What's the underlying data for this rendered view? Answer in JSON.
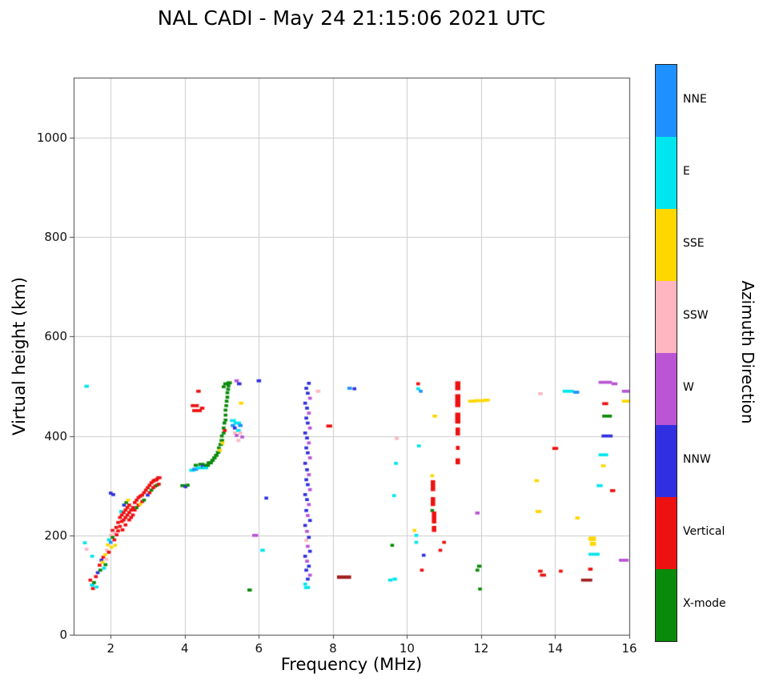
{
  "title": "NAL CADI - May 24 21:15:06 2021 UTC",
  "chart_data": {
    "type": "scatter",
    "title": "NAL CADI - May 24 21:15:06 2021 UTC",
    "xlabel": "Frequency (MHz)",
    "ylabel": "Virtual height (km)",
    "xlim": [
      1,
      16
    ],
    "ylim": [
      0,
      1121
    ],
    "xticks": [
      2,
      4,
      6,
      8,
      10,
      12,
      14,
      16
    ],
    "yticks": [
      0,
      200,
      400,
      600,
      800,
      1000
    ],
    "grid": true,
    "grid_color": "#cccccc",
    "axis_color": "#444444",
    "background": "#ffffff",
    "legend_title": "Azimuth Direction",
    "legend": [
      "NNE",
      "E",
      "SSE",
      "SSW",
      "W",
      "NNW",
      "Vertical",
      "X-mode"
    ],
    "colors": {
      "NNE": "#1E90FF",
      "E": "#00E5EE",
      "SSE": "#FFD700",
      "SSW": "#FFB6C1",
      "W": "#BA55D3",
      "NNW": "#3030E0",
      "Vertical": "#EE1111",
      "X-mode": "#0A8A0A",
      "DarkRed": "#A02020"
    },
    "point_format": "[freq_MHz, virtual_height_km, azimuth, width_MHz(optional, default 0.1), height_km(optional, default 6)]",
    "points": [
      [
        1.35,
        500,
        "E",
        0.12
      ],
      [
        1.3,
        185,
        "E"
      ],
      [
        1.35,
        172,
        "SSW"
      ],
      [
        1.5,
        158,
        "E"
      ],
      [
        1.45,
        110,
        "Vertical"
      ],
      [
        1.5,
        100,
        "E",
        0.12
      ],
      [
        1.52,
        93,
        "Vertical"
      ],
      [
        1.55,
        105,
        "X-mode"
      ],
      [
        1.6,
        117,
        "Vertical"
      ],
      [
        1.62,
        96,
        "E"
      ],
      [
        1.65,
        125,
        "NNW"
      ],
      [
        1.7,
        140,
        "Vertical"
      ],
      [
        1.72,
        130,
        "X-mode"
      ],
      [
        1.75,
        150,
        "NNW"
      ],
      [
        1.78,
        146,
        "SSE"
      ],
      [
        1.8,
        156,
        "Vertical"
      ],
      [
        1.82,
        134,
        "E"
      ],
      [
        1.85,
        161,
        "SSE"
      ],
      [
        1.86,
        141,
        "X-mode"
      ],
      [
        1.88,
        152,
        "SSW"
      ],
      [
        1.9,
        170,
        "SSW"
      ],
      [
        1.92,
        181,
        "SSE"
      ],
      [
        1.95,
        191,
        "E"
      ],
      [
        1.95,
        166,
        "Vertical"
      ],
      [
        2.0,
        200,
        "SSW"
      ],
      [
        2.0,
        186,
        "NNE"
      ],
      [
        2.02,
        176,
        "SSE"
      ],
      [
        2.05,
        210,
        "Vertical"
      ],
      [
        2.05,
        196,
        "X-mode"
      ],
      [
        2.1,
        205,
        "SSW"
      ],
      [
        2.1,
        191,
        "Vertical"
      ],
      [
        2.12,
        180,
        "SSE"
      ],
      [
        2.0,
        285,
        "NNW"
      ],
      [
        2.07,
        282,
        "NNW"
      ],
      [
        2.15,
        216,
        "Vertical"
      ],
      [
        2.16,
        201,
        "Vertical"
      ],
      [
        2.2,
        226,
        "Vertical"
      ],
      [
        2.2,
        209,
        "Vertical"
      ],
      [
        2.25,
        236,
        "Vertical"
      ],
      [
        2.25,
        218,
        "Vertical"
      ],
      [
        2.28,
        248,
        "E"
      ],
      [
        2.3,
        241,
        "Vertical"
      ],
      [
        2.3,
        228,
        "Vertical"
      ],
      [
        2.32,
        211,
        "Vertical"
      ],
      [
        2.35,
        246,
        "Vertical"
      ],
      [
        2.35,
        231,
        "Vertical"
      ],
      [
        2.36,
        261,
        "NNW"
      ],
      [
        2.4,
        251,
        "Vertical"
      ],
      [
        2.4,
        236,
        "Vertical"
      ],
      [
        2.4,
        221,
        "Vertical"
      ],
      [
        2.42,
        266,
        "X-mode"
      ],
      [
        2.45,
        256,
        "Vertical"
      ],
      [
        2.45,
        241,
        "Vertical"
      ],
      [
        2.47,
        271,
        "SSE"
      ],
      [
        2.5,
        261,
        "Vertical"
      ],
      [
        2.5,
        246,
        "Vertical"
      ],
      [
        2.5,
        231,
        "Vertical"
      ],
      [
        2.55,
        251,
        "Vertical"
      ],
      [
        2.55,
        236,
        "Vertical"
      ],
      [
        2.6,
        256,
        "Vertical"
      ],
      [
        2.6,
        241,
        "Vertical"
      ],
      [
        2.65,
        266,
        "Vertical"
      ],
      [
        2.65,
        251,
        "Vertical"
      ],
      [
        2.7,
        271,
        "Vertical"
      ],
      [
        2.7,
        256,
        "X-mode"
      ],
      [
        2.75,
        276,
        "Vertical"
      ],
      [
        2.75,
        261,
        "Vertical"
      ],
      [
        2.8,
        279,
        "Vertical"
      ],
      [
        2.8,
        263,
        "SSE"
      ],
      [
        2.85,
        281,
        "Vertical"
      ],
      [
        2.85,
        268,
        "Vertical"
      ],
      [
        2.9,
        286,
        "Vertical"
      ],
      [
        2.9,
        271,
        "X-mode"
      ],
      [
        2.95,
        291,
        "Vertical"
      ],
      [
        3.0,
        296,
        "Vertical"
      ],
      [
        3.0,
        281,
        "NNW"
      ],
      [
        3.05,
        301,
        "Vertical"
      ],
      [
        3.05,
        286,
        "Vertical"
      ],
      [
        3.1,
        306,
        "Vertical"
      ],
      [
        3.1,
        291,
        "X-mode"
      ],
      [
        3.15,
        309,
        "Vertical"
      ],
      [
        3.15,
        296,
        "Vertical"
      ],
      [
        3.2,
        311,
        "Vertical",
        0.14
      ],
      [
        3.2,
        299,
        "Vertical"
      ],
      [
        3.25,
        313,
        "Vertical"
      ],
      [
        3.25,
        301,
        "X-mode"
      ],
      [
        3.3,
        316,
        "Vertical",
        0.14
      ],
      [
        3.3,
        303,
        "Vertical"
      ],
      [
        3.95,
        300,
        "X-mode",
        0.14
      ],
      [
        4.02,
        298,
        "NNW"
      ],
      [
        4.08,
        301,
        "X-mode"
      ],
      [
        4.2,
        331,
        "E",
        0.16
      ],
      [
        4.28,
        333,
        "NNE",
        0.16
      ],
      [
        4.3,
        341,
        "X-mode",
        0.12
      ],
      [
        4.4,
        336,
        "E",
        0.2
      ],
      [
        4.45,
        343,
        "X-mode",
        0.16
      ],
      [
        4.5,
        339,
        "NNW",
        0.12
      ],
      [
        4.55,
        336,
        "E",
        0.16
      ],
      [
        4.6,
        341,
        "X-mode",
        0.16
      ],
      [
        4.65,
        346,
        "X-mode",
        0.12
      ],
      [
        4.27,
        461,
        "Vertical",
        0.22
      ],
      [
        4.33,
        451,
        "Vertical",
        0.26
      ],
      [
        4.47,
        456,
        "Vertical",
        0.12
      ],
      [
        4.37,
        490,
        "Vertical",
        0.12
      ],
      [
        4.7,
        346,
        "X-mode",
        0.12
      ],
      [
        4.75,
        351,
        "X-mode",
        0.12
      ],
      [
        4.8,
        356,
        "X-mode",
        0.12
      ],
      [
        4.85,
        361,
        "X-mode",
        0.12
      ],
      [
        4.9,
        367,
        "X-mode",
        0.12
      ],
      [
        4.92,
        376,
        "X-mode"
      ],
      [
        4.95,
        371,
        "SSE"
      ],
      [
        4.97,
        383,
        "X-mode",
        0.12
      ],
      [
        5.0,
        391,
        "X-mode",
        0.12
      ],
      [
        5.0,
        400,
        "X-mode"
      ],
      [
        5.02,
        386,
        "SSE"
      ],
      [
        5.05,
        406,
        "X-mode"
      ],
      [
        5.05,
        416,
        "X-mode"
      ],
      [
        5.07,
        426,
        "X-mode"
      ],
      [
        5.08,
        411,
        "Vertical"
      ],
      [
        5.1,
        432,
        "X-mode"
      ],
      [
        5.1,
        442,
        "X-mode"
      ],
      [
        5.1,
        452,
        "X-mode"
      ],
      [
        5.12,
        461,
        "X-mode"
      ],
      [
        5.13,
        470,
        "X-mode"
      ],
      [
        5.15,
        478,
        "X-mode"
      ],
      [
        5.15,
        487,
        "X-mode"
      ],
      [
        5.17,
        494,
        "X-mode"
      ],
      [
        5.18,
        501,
        "X-mode"
      ],
      [
        5.2,
        507,
        "X-mode",
        0.14
      ],
      [
        5.1,
        505,
        "X-mode",
        0.12
      ],
      [
        5.05,
        499,
        "X-mode"
      ],
      [
        5.3,
        431,
        "E",
        0.16
      ],
      [
        5.3,
        421,
        "NNE",
        0.12
      ],
      [
        5.35,
        416,
        "NNW"
      ],
      [
        5.35,
        406,
        "SSW"
      ],
      [
        5.4,
        401,
        "W"
      ],
      [
        5.42,
        426,
        "E",
        0.2
      ],
      [
        5.45,
        411,
        "E",
        0.12
      ],
      [
        5.5,
        421,
        "NNE",
        0.12
      ],
      [
        5.5,
        406,
        "SSW"
      ],
      [
        5.55,
        398,
        "W"
      ],
      [
        5.45,
        391,
        "SSW"
      ],
      [
        5.4,
        511,
        "W",
        0.12
      ],
      [
        5.47,
        505,
        "NNW",
        0.12
      ],
      [
        5.52,
        466,
        "SSE",
        0.12
      ],
      [
        5.75,
        90,
        "X-mode",
        0.12
      ],
      [
        5.9,
        200,
        "W",
        0.16
      ],
      [
        6.0,
        511,
        "NNW",
        0.12
      ],
      [
        6.1,
        170,
        "E",
        0.12
      ],
      [
        6.2,
        275,
        "NNW"
      ],
      [
        7.3,
        95,
        "E",
        0.16
      ],
      [
        7.25,
        102,
        "E"
      ],
      [
        7.32,
        112,
        "NNW"
      ],
      [
        7.38,
        120,
        "W"
      ],
      [
        7.28,
        130,
        "NNW"
      ],
      [
        7.35,
        138,
        "NNW"
      ],
      [
        7.3,
        148,
        "W"
      ],
      [
        7.25,
        158,
        "NNW"
      ],
      [
        7.38,
        168,
        "NNW"
      ],
      [
        7.32,
        178,
        "W"
      ],
      [
        7.28,
        190,
        "SSW"
      ],
      [
        7.35,
        196,
        "NNW"
      ],
      [
        7.3,
        208,
        "W"
      ],
      [
        7.25,
        220,
        "NNW"
      ],
      [
        7.38,
        230,
        "NNW"
      ],
      [
        7.32,
        240,
        "W"
      ],
      [
        7.28,
        250,
        "NNW"
      ],
      [
        7.35,
        262,
        "W"
      ],
      [
        7.3,
        272,
        "NNW"
      ],
      [
        7.25,
        282,
        "NNW"
      ],
      [
        7.38,
        292,
        "W"
      ],
      [
        7.32,
        302,
        "NNW"
      ],
      [
        7.28,
        312,
        "NNW"
      ],
      [
        7.35,
        322,
        "W"
      ],
      [
        7.3,
        332,
        "NNW"
      ],
      [
        7.25,
        345,
        "NNW"
      ],
      [
        7.38,
        356,
        "W"
      ],
      [
        7.32,
        366,
        "NNW"
      ],
      [
        7.28,
        376,
        "NNW"
      ],
      [
        7.35,
        386,
        "W"
      ],
      [
        7.3,
        396,
        "NNW"
      ],
      [
        7.25,
        406,
        "NNW"
      ],
      [
        7.38,
        416,
        "W"
      ],
      [
        7.32,
        426,
        "NNW"
      ],
      [
        7.28,
        436,
        "NNW"
      ],
      [
        7.35,
        446,
        "W"
      ],
      [
        7.3,
        456,
        "NNW"
      ],
      [
        7.25,
        466,
        "NNW"
      ],
      [
        7.38,
        476,
        "W"
      ],
      [
        7.32,
        486,
        "NNW"
      ],
      [
        7.28,
        496,
        "NNW"
      ],
      [
        7.35,
        506,
        "NNW"
      ],
      [
        7.6,
        490,
        "SSW",
        0.12
      ],
      [
        7.9,
        420,
        "Vertical",
        0.16
      ],
      [
        8.3,
        116,
        "DarkRed",
        0.38,
        7
      ],
      [
        8.45,
        496,
        "NNE",
        0.12
      ],
      [
        8.58,
        495,
        "NNW"
      ],
      [
        9.55,
        110,
        "E",
        0.12
      ],
      [
        9.67,
        112,
        "E",
        0.12
      ],
      [
        9.6,
        180,
        "X-mode"
      ],
      [
        9.65,
        280,
        "E"
      ],
      [
        9.7,
        345,
        "E"
      ],
      [
        9.72,
        395,
        "SSW"
      ],
      [
        10.2,
        210,
        "SSE"
      ],
      [
        10.25,
        200,
        "E"
      ],
      [
        10.25,
        186,
        "E"
      ],
      [
        10.3,
        505,
        "Vertical"
      ],
      [
        10.3,
        495,
        "E"
      ],
      [
        10.37,
        490,
        "NNE"
      ],
      [
        10.32,
        380,
        "E"
      ],
      [
        10.45,
        160,
        "NNW"
      ],
      [
        10.4,
        130,
        "Vertical"
      ],
      [
        10.68,
        320,
        "SSE"
      ],
      [
        10.7,
        300,
        "Vertical",
        0.12,
        22
      ],
      [
        10.7,
        268,
        "Vertical",
        0.12,
        18
      ],
      [
        10.68,
        250,
        "X-mode"
      ],
      [
        10.73,
        236,
        "Vertical",
        0.12,
        24
      ],
      [
        10.73,
        213,
        "Vertical",
        0.12,
        12
      ],
      [
        10.75,
        440,
        "SSE",
        0.12
      ],
      [
        10.9,
        170,
        "Vertical"
      ],
      [
        11.0,
        186,
        "Vertical"
      ],
      [
        11.37,
        501,
        "Vertical",
        0.14,
        18
      ],
      [
        11.37,
        471,
        "Vertical",
        0.14,
        26
      ],
      [
        11.37,
        436,
        "Vertical",
        0.14,
        22
      ],
      [
        11.37,
        409,
        "Vertical",
        0.12,
        16
      ],
      [
        11.37,
        376,
        "Vertical",
        0.1,
        8
      ],
      [
        11.37,
        349,
        "Vertical",
        0.12,
        12
      ],
      [
        11.75,
        470,
        "SSE",
        0.2
      ],
      [
        11.95,
        471,
        "SSE",
        0.3
      ],
      [
        12.15,
        472,
        "SSE",
        0.16
      ],
      [
        11.9,
        245,
        "W",
        0.12
      ],
      [
        11.95,
        138,
        "X-mode",
        0.12
      ],
      [
        11.9,
        130,
        "X-mode"
      ],
      [
        11.97,
        92,
        "X-mode"
      ],
      [
        13.5,
        310,
        "SSE",
        0.12
      ],
      [
        13.55,
        248,
        "SSE",
        0.16
      ],
      [
        13.6,
        485,
        "SSW",
        0.12
      ],
      [
        13.6,
        128,
        "Vertical",
        0.12
      ],
      [
        13.67,
        120,
        "Vertical",
        0.16
      ],
      [
        14.0,
        375,
        "Vertical",
        0.16
      ],
      [
        14.15,
        128,
        "Vertical"
      ],
      [
        14.35,
        490,
        "E",
        0.3
      ],
      [
        14.57,
        488,
        "NNE",
        0.16
      ],
      [
        14.6,
        235,
        "SSE",
        0.12
      ],
      [
        14.85,
        110,
        "DarkRed",
        0.3,
        6
      ],
      [
        14.95,
        132,
        "Vertical",
        0.12
      ],
      [
        15.0,
        193,
        "SSE",
        0.2,
        9
      ],
      [
        15.02,
        183,
        "SSE",
        0.16,
        8
      ],
      [
        15.05,
        162,
        "E",
        0.3
      ],
      [
        15.2,
        300,
        "E",
        0.16
      ],
      [
        15.3,
        340,
        "SSE",
        0.12
      ],
      [
        15.3,
        362,
        "E",
        0.26
      ],
      [
        15.4,
        400,
        "NNW",
        0.3
      ],
      [
        15.4,
        440,
        "X-mode",
        0.26
      ],
      [
        15.35,
        465,
        "Vertical",
        0.16
      ],
      [
        15.55,
        290,
        "Vertical",
        0.14
      ],
      [
        15.35,
        508,
        "W",
        0.36
      ],
      [
        15.6,
        505,
        "W",
        0.16
      ],
      [
        15.9,
        470,
        "SSE",
        0.2
      ],
      [
        15.9,
        490,
        "W",
        0.2
      ],
      [
        15.85,
        150,
        "W",
        0.26
      ]
    ]
  }
}
